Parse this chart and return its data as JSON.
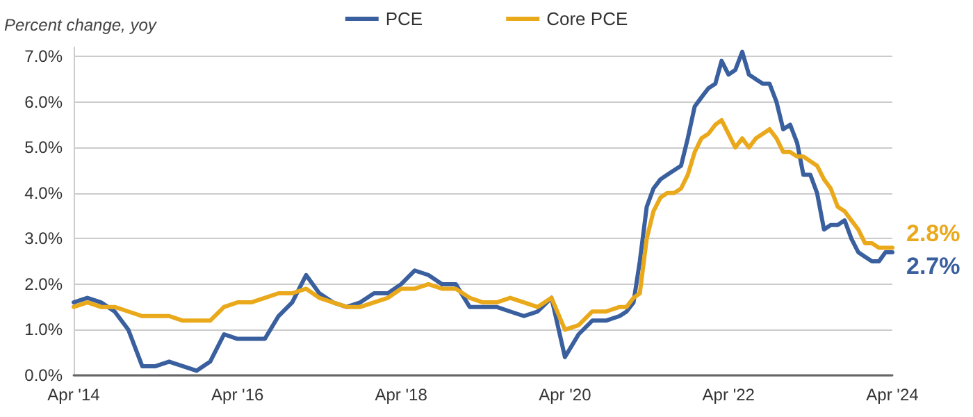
{
  "chart_data": {
    "type": "line",
    "ylabel": "Percent change, yoy",
    "x": [
      "2014-04",
      "2014-06",
      "2014-08",
      "2014-10",
      "2014-12",
      "2015-02",
      "2015-04",
      "2015-06",
      "2015-08",
      "2015-10",
      "2015-12",
      "2016-02",
      "2016-04",
      "2016-06",
      "2016-08",
      "2016-10",
      "2016-12",
      "2017-02",
      "2017-04",
      "2017-06",
      "2017-08",
      "2017-10",
      "2017-12",
      "2018-02",
      "2018-04",
      "2018-06",
      "2018-08",
      "2018-10",
      "2018-12",
      "2019-02",
      "2019-04",
      "2019-06",
      "2019-08",
      "2019-10",
      "2019-12",
      "2020-02",
      "2020-04",
      "2020-06",
      "2020-08",
      "2020-10",
      "2020-12",
      "2021-01",
      "2021-02",
      "2021-03",
      "2021-04",
      "2021-05",
      "2021-06",
      "2021-07",
      "2021-08",
      "2021-09",
      "2021-10",
      "2021-11",
      "2021-12",
      "2022-01",
      "2022-02",
      "2022-03",
      "2022-04",
      "2022-05",
      "2022-06",
      "2022-07",
      "2022-08",
      "2022-09",
      "2022-10",
      "2022-11",
      "2022-12",
      "2023-01",
      "2023-02",
      "2023-03",
      "2023-04",
      "2023-05",
      "2023-06",
      "2023-07",
      "2023-08",
      "2023-09",
      "2023-10",
      "2023-11",
      "2023-12",
      "2024-01",
      "2024-02",
      "2024-03",
      "2024-04"
    ],
    "series": [
      {
        "name": "PCE",
        "color": "#3a5f9e",
        "values": [
          1.6,
          1.7,
          1.6,
          1.4,
          1.0,
          0.2,
          0.2,
          0.3,
          0.2,
          0.1,
          0.3,
          0.9,
          0.8,
          0.8,
          0.8,
          1.3,
          1.6,
          2.2,
          1.8,
          1.6,
          1.5,
          1.6,
          1.8,
          1.8,
          2.0,
          2.3,
          2.2,
          2.0,
          2.0,
          1.5,
          1.5,
          1.5,
          1.4,
          1.3,
          1.4,
          1.7,
          0.4,
          0.9,
          1.2,
          1.2,
          1.3,
          1.4,
          1.6,
          2.5,
          3.7,
          4.1,
          4.3,
          4.4,
          4.5,
          4.6,
          5.2,
          5.9,
          6.1,
          6.3,
          6.4,
          6.9,
          6.6,
          6.7,
          7.1,
          6.6,
          6.5,
          6.4,
          6.4,
          6.0,
          5.4,
          5.5,
          5.1,
          4.4,
          4.4,
          4.0,
          3.2,
          3.3,
          3.3,
          3.4,
          3.0,
          2.7,
          2.6,
          2.5,
          2.5,
          2.7,
          2.7
        ]
      },
      {
        "name": "Core PCE",
        "color": "#eaa81b",
        "values": [
          1.5,
          1.6,
          1.5,
          1.5,
          1.4,
          1.3,
          1.3,
          1.3,
          1.2,
          1.2,
          1.2,
          1.5,
          1.6,
          1.6,
          1.7,
          1.8,
          1.8,
          1.9,
          1.7,
          1.6,
          1.5,
          1.5,
          1.6,
          1.7,
          1.9,
          1.9,
          2.0,
          1.9,
          1.9,
          1.7,
          1.6,
          1.6,
          1.7,
          1.6,
          1.5,
          1.7,
          1.0,
          1.1,
          1.4,
          1.4,
          1.5,
          1.5,
          1.7,
          1.8,
          3.0,
          3.6,
          3.9,
          4.0,
          4.0,
          4.1,
          4.4,
          4.9,
          5.2,
          5.3,
          5.5,
          5.6,
          5.3,
          5.0,
          5.2,
          5.0,
          5.2,
          5.3,
          5.4,
          5.2,
          4.9,
          4.9,
          4.8,
          4.8,
          4.7,
          4.6,
          4.3,
          4.1,
          3.7,
          3.6,
          3.4,
          3.2,
          2.9,
          2.9,
          2.8,
          2.8,
          2.8
        ]
      }
    ],
    "xlim": [
      "2014-04",
      "2024-04"
    ],
    "xticks": [
      {
        "value": "2014-04",
        "label": "Apr '14"
      },
      {
        "value": "2016-04",
        "label": "Apr '16"
      },
      {
        "value": "2018-04",
        "label": "Apr '18"
      },
      {
        "value": "2020-04",
        "label": "Apr '20"
      },
      {
        "value": "2022-04",
        "label": "Apr '22"
      },
      {
        "value": "2024-04",
        "label": "Apr '24"
      }
    ],
    "ylim": [
      0,
      7.2
    ],
    "yticks": [
      {
        "value": 0,
        "label": "0.0%"
      },
      {
        "value": 1,
        "label": "1.0%"
      },
      {
        "value": 2,
        "label": "2.0%"
      },
      {
        "value": 3,
        "label": "3.0%"
      },
      {
        "value": 4,
        "label": "4.0%"
      },
      {
        "value": 5,
        "label": "5.0%"
      },
      {
        "value": 6,
        "label": "6.0%"
      },
      {
        "value": 7,
        "label": "7.0%"
      }
    ],
    "grid": "y",
    "legend": "top",
    "marker": "none",
    "line_style": "solid",
    "annotations": [
      {
        "text": "2.8%",
        "x": "2024-04",
        "y": 2.8
      },
      {
        "text": "2.7%",
        "x": "2024-04",
        "y": 2.7
      }
    ]
  }
}
